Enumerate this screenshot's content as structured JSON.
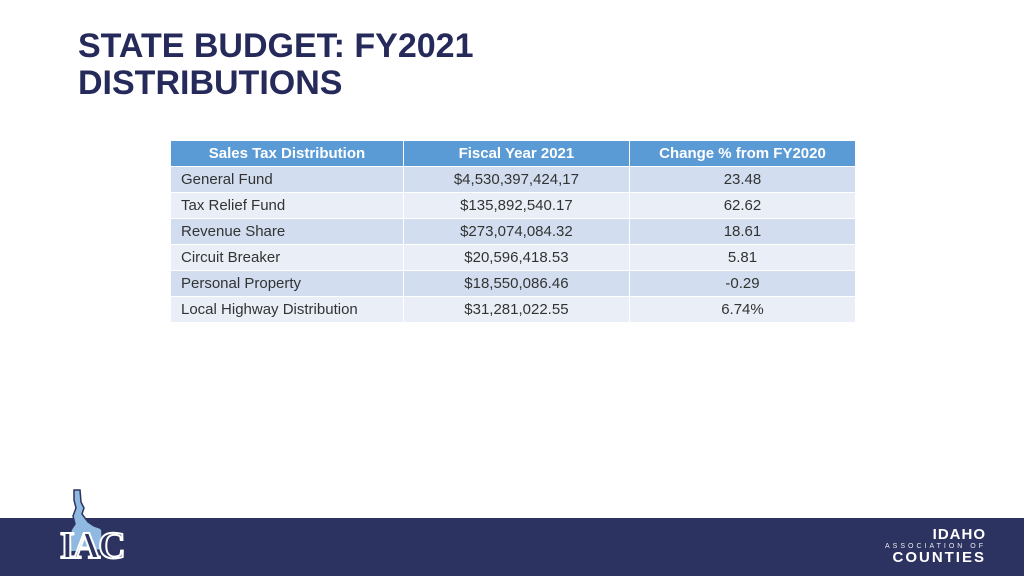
{
  "title": {
    "text": "STATE BUDGET: FY2021\nDISTRIBUTIONS",
    "color": "#262a5a",
    "font_size_pt": 34
  },
  "table": {
    "type": "table",
    "header_bg": "#5b9bd5",
    "header_fg": "#ffffff",
    "row_alt_bg_1": "#d2deef",
    "row_alt_bg_2": "#eaeff7",
    "border_color": "#ffffff",
    "font_size_pt": 15,
    "columns": [
      "Sales Tax Distribution",
      "Fiscal Year 2021",
      "Change % from FY2020"
    ],
    "rows": [
      [
        "General Fund",
        "$4,530,397,424,17",
        "23.48"
      ],
      [
        "Tax Relief Fund",
        "$135,892,540.17",
        "62.62"
      ],
      [
        "Revenue Share",
        "$273,074,084.32",
        "18.61"
      ],
      [
        "Circuit Breaker",
        "$20,596,418.53",
        "5.81"
      ],
      [
        "Personal Property",
        "$18,550,086.46",
        "-0.29"
      ],
      [
        "Local Highway Distribution",
        "$31,281,022.55",
        "6.74%"
      ]
    ]
  },
  "footer": {
    "bar_color": "#2d3360",
    "logo": {
      "text": "IAC",
      "text_color": "#2d3360",
      "shape_fill": "#8fb9e0"
    },
    "right": {
      "line1": "IDAHO",
      "line2": "ASSOCIATION OF",
      "line3": "COUNTIES"
    }
  },
  "background_color": "#ffffff"
}
